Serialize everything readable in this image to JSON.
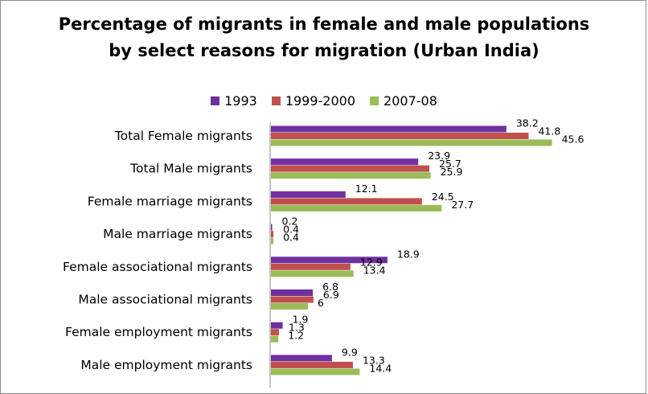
{
  "chart_data": {
    "type": "bar",
    "orientation": "horizontal",
    "title": "Percentage of migrants in female and male populations\nby select reasons for migration (Urban India)",
    "categories": [
      "Total Female migrants",
      "Total Male migrants",
      "Female marriage migrants",
      "Male marriage migrants",
      "Female associational migrants",
      "Male associational migrants",
      "Female employment migrants",
      "Male employment migrants"
    ],
    "series": [
      {
        "name": "1993",
        "color": "#7030a0",
        "values": [
          38.2,
          23.9,
          12.1,
          0.2,
          18.9,
          6.8,
          1.9,
          9.9
        ]
      },
      {
        "name": "1999-2000",
        "color": "#c0504d",
        "values": [
          41.8,
          25.7,
          24.5,
          0.4,
          12.9,
          6.9,
          1.3,
          13.3
        ]
      },
      {
        "name": "2007-08",
        "color": "#9bbb59",
        "values": [
          45.6,
          25.9,
          27.7,
          0.4,
          13.4,
          6,
          1.2,
          14.4
        ]
      }
    ],
    "xlim": [
      0,
      60
    ],
    "legend_position": "top",
    "grid": false,
    "data_labels": true
  }
}
